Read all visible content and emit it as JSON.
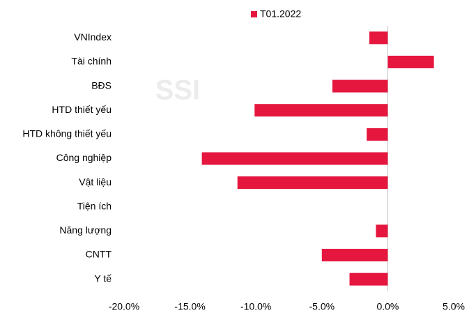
{
  "chart_data": {
    "type": "barh",
    "watermark": "SSI",
    "categories": [
      "VNIndex",
      "Tài chính",
      "BĐS",
      "HTD thiết yếu",
      "HTD không thiết yếu",
      "Công nghiệp",
      "Vật liệu",
      "Tiện ích",
      "Năng lượng",
      "CNTT",
      "Y tế"
    ],
    "series": [
      {
        "name": "T01.2022",
        "color": "#e5173f",
        "values": [
          -1.4,
          3.5,
          -4.2,
          -10.1,
          -1.6,
          -14.1,
          -11.4,
          0,
          -0.9,
          -5.0,
          -2.9
        ]
      }
    ],
    "xlim": [
      -20,
      5
    ],
    "xticks": [
      {
        "value": -20,
        "label": "-20.0%"
      },
      {
        "value": -15,
        "label": "-15.0%"
      },
      {
        "value": -10,
        "label": "-10.0%"
      },
      {
        "value": -5,
        "label": "-5.0%"
      },
      {
        "value": 0,
        "label": "0.0%"
      },
      {
        "value": 5,
        "label": "5.0%"
      }
    ],
    "legend": "top"
  }
}
